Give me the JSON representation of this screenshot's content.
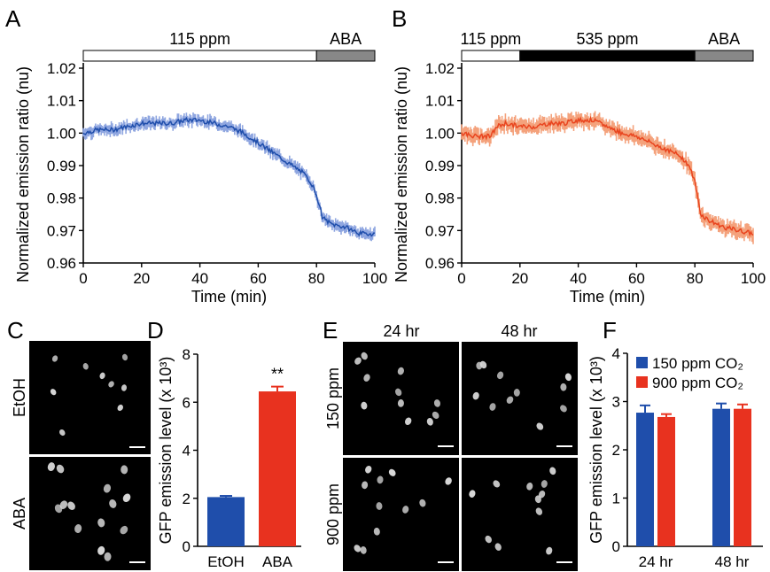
{
  "panels": {
    "A": {
      "letter": "A",
      "bar_labels": [
        "115 ppm",
        "ABA"
      ]
    },
    "B": {
      "letter": "B",
      "bar_labels": [
        "115 ppm",
        "535 ppm",
        "ABA"
      ]
    },
    "C": {
      "letter": "C",
      "row_labels": [
        "EtOH",
        "ABA"
      ]
    },
    "D": {
      "letter": "D"
    },
    "E": {
      "letter": "E",
      "col_labels": [
        "24 hr",
        "48 hr"
      ],
      "row_labels": [
        "150 ppm",
        "900 ppm"
      ]
    },
    "F": {
      "letter": "F"
    }
  },
  "colors": {
    "blue": "#1f4eab",
    "blue_light": "#8fa6e0",
    "red": "#e8321f",
    "orange": "#e9441e",
    "orange_light": "#f4a27c",
    "gray": "#888888"
  },
  "chart_data": [
    {
      "id": "A",
      "type": "line",
      "xlabel": "Time (min)",
      "ylabel": "Normalized emission ratio (nu)",
      "xlim": [
        0,
        100
      ],
      "ylim": [
        0.96,
        1.02
      ],
      "xticks": [
        "0",
        "20",
        "40",
        "60",
        "80",
        "100"
      ],
      "yticks": [
        "0.96",
        "0.97",
        "0.98",
        "0.99",
        "1.00",
        "1.01",
        "1.02"
      ],
      "treatments": [
        {
          "label": "115 ppm",
          "start": 0,
          "end": 80,
          "fill": "#ffffff"
        },
        {
          "label": "ABA",
          "start": 80,
          "end": 100,
          "fill": "#888888"
        }
      ],
      "series": [
        {
          "color": "#1f4eab",
          "band_color": "#8fa6e0",
          "x": [
            0,
            5,
            10,
            15,
            20,
            25,
            30,
            35,
            40,
            45,
            50,
            55,
            60,
            65,
            70,
            75,
            78,
            80,
            82,
            85,
            90,
            95,
            100
          ],
          "y": [
            1.0,
            1.001,
            1.001,
            1.002,
            1.003,
            1.003,
            1.003,
            1.004,
            1.004,
            1.003,
            1.002,
            1.0,
            0.997,
            0.994,
            0.991,
            0.988,
            0.985,
            0.981,
            0.974,
            0.972,
            0.971,
            0.969,
            0.969
          ],
          "err": 0.0015
        }
      ]
    },
    {
      "id": "B",
      "type": "line",
      "xlabel": "Time (min)",
      "ylabel": "Normalized emission ratio (nu)",
      "xlim": [
        0,
        100
      ],
      "ylim": [
        0.96,
        1.02
      ],
      "xticks": [
        "0",
        "20",
        "40",
        "60",
        "80",
        "100"
      ],
      "yticks": [
        "0.96",
        "0.97",
        "0.98",
        "0.99",
        "1.00",
        "1.01",
        "1.02"
      ],
      "treatments": [
        {
          "label": "115 ppm",
          "start": 0,
          "end": 20,
          "fill": "#ffffff"
        },
        {
          "label": "535 ppm",
          "start": 20,
          "end": 80,
          "fill": "#000000"
        },
        {
          "label": "ABA",
          "start": 80,
          "end": 100,
          "fill": "#888888"
        }
      ],
      "series": [
        {
          "color": "#e9441e",
          "band_color": "#f4a27c",
          "x": [
            0,
            5,
            10,
            12,
            15,
            20,
            25,
            30,
            35,
            40,
            45,
            50,
            55,
            60,
            65,
            70,
            75,
            78,
            80,
            82,
            85,
            90,
            95,
            100
          ],
          "y": [
            1.0,
            0.999,
            0.999,
            1.002,
            1.003,
            1.002,
            1.002,
            1.003,
            1.003,
            1.004,
            1.004,
            1.002,
            1.0,
            0.999,
            0.997,
            0.995,
            0.993,
            0.99,
            0.985,
            0.975,
            0.973,
            0.971,
            0.97,
            0.969
          ],
          "err": 0.002
        }
      ]
    },
    {
      "id": "D",
      "type": "bar",
      "categories": [
        "EtOH",
        "ABA"
      ],
      "values": [
        2.05,
        6.45
      ],
      "errors": [
        0.05,
        0.2
      ],
      "colors": [
        "#1f4eab",
        "#e8321f"
      ],
      "ylabel": "GFP emission level (x 10³)",
      "ylim": [
        0,
        8
      ],
      "yticks": [
        "0",
        "2",
        "4",
        "6",
        "8"
      ],
      "annotations": [
        {
          "category": "ABA",
          "text": "**"
        }
      ]
    },
    {
      "id": "F",
      "type": "bar",
      "categories": [
        "24 hr",
        "48 hr"
      ],
      "series": [
        {
          "name": "150 ppm CO₂",
          "color": "#1f4eab",
          "values": [
            2.77,
            2.85
          ],
          "errors": [
            0.15,
            0.11
          ]
        },
        {
          "name": "900 ppm CO₂",
          "color": "#e8321f",
          "values": [
            2.68,
            2.85
          ],
          "errors": [
            0.06,
            0.09
          ]
        }
      ],
      "ylabel": "GFP emission level (x 10³)",
      "ylim": [
        0,
        4
      ],
      "yticks": [
        "0",
        "1",
        "2",
        "3",
        "4"
      ],
      "legend": "top-right"
    }
  ]
}
